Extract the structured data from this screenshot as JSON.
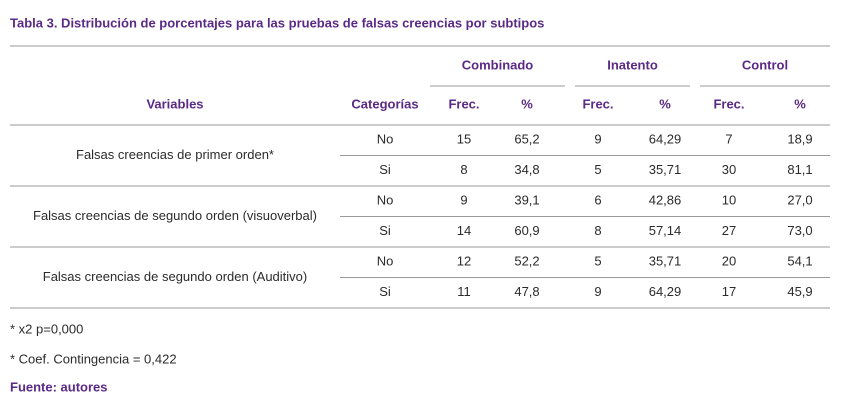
{
  "title": "Tabla 3. Distribución de porcentajes para las pruebas de falsas creencias por subtipos",
  "table": {
    "group_headers": [
      "Combinado",
      "Inatento",
      "Control"
    ],
    "headers": [
      "Variables",
      "Categorías",
      "Frec.",
      "%",
      "Frec.",
      "%",
      "Frec.",
      "%"
    ],
    "rows": [
      {
        "variable": "Falsas creencias de primer orden*",
        "subrows": [
          [
            "No",
            "15",
            "65,2",
            "9",
            "64,29",
            "7",
            "18,9"
          ],
          [
            "Si",
            "8",
            "34,8",
            "5",
            "35,71",
            "30",
            "81,1"
          ]
        ]
      },
      {
        "variable": "Falsas creencias de segundo orden (visuoverbal)",
        "subrows": [
          [
            "No",
            "9",
            "39,1",
            "6",
            "42,86",
            "10",
            "27,0"
          ],
          [
            "Si",
            "14",
            "60,9",
            "8",
            "57,14",
            "27",
            "73,0"
          ]
        ]
      },
      {
        "variable": "Falsas creencias de segundo orden (Auditivo)",
        "subrows": [
          [
            "No",
            "12",
            "52,2",
            "5",
            "35,71",
            "20",
            "54,1"
          ],
          [
            "Si",
            "11",
            "47,8",
            "9",
            "64,29",
            "17",
            "45,9"
          ]
        ]
      }
    ]
  },
  "notes": [
    "* x2 p=0,000",
    "* Coef. Contingencia = 0,422"
  ],
  "source": "Fuente: autores"
}
